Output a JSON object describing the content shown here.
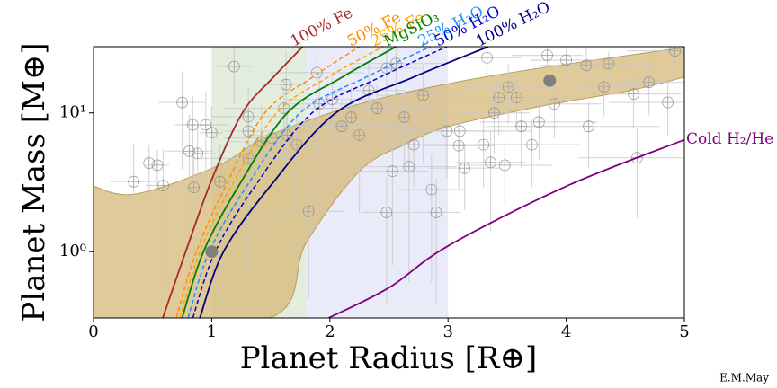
{
  "chart_data": {
    "type": "scatter",
    "x_label": "Planet Radius [R⊕]",
    "y_label": "Planet Mass [M⊕]",
    "xlim": [
      0,
      5
    ],
    "ylim": [
      0.333,
      30
    ],
    "xticks": [
      0,
      1,
      2,
      3,
      4,
      5
    ],
    "yticks": [
      {
        "value": 1,
        "label": "10⁰"
      },
      {
        "value": 10,
        "label": "10¹"
      }
    ],
    "log_y": true,
    "regions": [
      {
        "xlim": [
          1,
          1.8
        ],
        "color": "#dbe9d6"
      },
      {
        "xlim": [
          1.8,
          3
        ],
        "color": "#e4e7f6"
      }
    ],
    "band": {
      "color": "#d6b878",
      "upper": {
        "x": [
          0,
          0.35,
          1.035,
          1.49,
          2.25,
          3.01,
          3.77,
          5
        ],
        "y": [
          2.96,
          2.6,
          4.1,
          6.9,
          11.6,
          16.3,
          21,
          29.6
        ]
      },
      "lower": {
        "x": [
          0,
          1.49,
          1.8,
          2.25,
          2.63,
          3.01,
          3.77,
          4.54,
          5
        ],
        "y": [
          0.333,
          0.333,
          1.16,
          3.8,
          5.9,
          8,
          11.1,
          14.5,
          18.1
        ]
      }
    },
    "curves": [
      {
        "name": "100% Fe",
        "color": "#a52a2a",
        "dashed": false,
        "x": [
          0.586,
          0.78,
          1.0,
          1.26,
          1.52,
          1.77
        ],
        "y": [
          0.333,
          1,
          3.3,
          10,
          18,
          30
        ]
      },
      {
        "name": "50% Fe",
        "color": "#ff8c00",
        "dashed": true,
        "x": [
          0.7,
          0.87,
          1.12,
          1.45,
          1.85,
          2.25
        ],
        "y": [
          0.333,
          1,
          3,
          10,
          18,
          30
        ]
      },
      {
        "name": "25% Fe",
        "color": "#ffa500",
        "dashed": true,
        "x": [
          0.73,
          0.9,
          1.17,
          1.55,
          1.98,
          2.45
        ],
        "y": [
          0.333,
          1,
          3,
          10,
          18,
          30
        ]
      },
      {
        "name": "MgSiO₃",
        "color": "#008000",
        "dashed": false,
        "x": [
          0.75,
          0.93,
          1.23,
          1.64,
          2.1,
          2.56
        ],
        "y": [
          0.333,
          1,
          3,
          10,
          18,
          30
        ]
      },
      {
        "name": "25% H₂O",
        "color": "#1e90ff",
        "dashed": true,
        "x": [
          0.8,
          0.98,
          1.3,
          1.75,
          2.3,
          2.85
        ],
        "y": [
          0.333,
          1,
          3,
          10,
          18,
          30
        ]
      },
      {
        "name": "50% H₂O",
        "color": "#0000cd",
        "dashed": true,
        "x": [
          0.84,
          1.03,
          1.37,
          1.85,
          2.42,
          2.99
        ],
        "y": [
          0.333,
          1,
          3,
          10,
          18,
          30
        ]
      },
      {
        "name": "100% H₂O",
        "color": "#000080",
        "dashed": false,
        "x": [
          0.9,
          1.1,
          1.5,
          2.05,
          2.7,
          3.34
        ],
        "y": [
          0.333,
          1,
          3,
          10,
          18,
          30
        ]
      },
      {
        "name": "Cold H₂/He",
        "color": "#800080",
        "dashed": false,
        "x": [
          1.99,
          2.5,
          3,
          4,
          5
        ],
        "y": [
          0.333,
          0.55,
          1.1,
          2.96,
          6.4
        ]
      }
    ],
    "planets": {
      "x": [
        0.47,
        0.54,
        0.34,
        0.59,
        0.75,
        0.84,
        0.95,
        1.0,
        0.81,
        0.88,
        0.85,
        1.19,
        1.31,
        1.31,
        1.31,
        1.07,
        1.42,
        1.51,
        1.63,
        1.61,
        1.64,
        1.72,
        1.82,
        1.89,
        1.91,
        2.02,
        2.1,
        2.18,
        2.25,
        2.33,
        2.4,
        2.48,
        2.56,
        2.53,
        2.67,
        2.48,
        2.63,
        2.71,
        2.79,
        2.86,
        2.9,
        2.99,
        3.09,
        3.1,
        3.14,
        3.33,
        3.3,
        3.36,
        3.43,
        3.39,
        3.48,
        3.51,
        3.58,
        3.62,
        3.71,
        3.77,
        3.84,
        3.9,
        4.0,
        4.17,
        4.19,
        4.32,
        4.36,
        4.57,
        4.6,
        4.7,
        4.86,
        4.92
      ],
      "y": [
        4.35,
        4.2,
        3.2,
        3.0,
        11.9,
        8.2,
        8.2,
        7.2,
        5.3,
        5.1,
        2.9,
        21.6,
        9.4,
        7.4,
        4.7,
        3.2,
        6.2,
        6.6,
        16,
        10.8,
        6.9,
        5.9,
        1.95,
        19.5,
        11.6,
        12.5,
        8,
        9.3,
        6.9,
        14.5,
        10.8,
        21,
        22.7,
        3.8,
        4.1,
        1.92,
        9.3,
        5.9,
        13.4,
        2.8,
        1.92,
        7.4,
        5.8,
        7.4,
        4,
        25,
        5.9,
        4.4,
        12.9,
        10,
        4.2,
        15.4,
        12.9,
        8,
        5.9,
        8.6,
        26,
        11.6,
        24,
        22,
        8,
        15.4,
        22.6,
        13.7,
        4.75,
        16.6,
        11.9,
        28
      ],
      "xerr": [
        0.1,
        0.1,
        0.2,
        0.15,
        0.2,
        0.15,
        0.2,
        0.1,
        0.2,
        0.15,
        0.1,
        0.15,
        0.3,
        0.2,
        0.4,
        0.2,
        0.3,
        0.4,
        0.2,
        0.5,
        0.3,
        0.2,
        0.3,
        0.4,
        0.3,
        0.4,
        0.5,
        0.3,
        0.4,
        0.3,
        0.5,
        0.3,
        0.4,
        0.3,
        0.4,
        0.2,
        0.6,
        0.3,
        0.4,
        0.3,
        0.2,
        0.5,
        0.3,
        0.6,
        0.3,
        0.3,
        0.4,
        0.3,
        0.5,
        0.3,
        0.4,
        0.4,
        0.5,
        0.3,
        0.4,
        0.5,
        0.3,
        0.4,
        0.3,
        0.4,
        0.6,
        0.3,
        0.4,
        0.4,
        0.5,
        0.3,
        0.5,
        0.4
      ],
      "yerr": [
        1.5,
        1.2,
        2.8,
        2.5,
        8,
        5,
        6,
        4,
        4.5,
        3,
        2.5,
        10,
        6,
        3,
        4,
        2.8,
        5,
        3,
        12,
        7,
        3,
        4,
        1.5,
        8,
        7,
        6,
        4,
        6,
        5,
        8,
        5,
        10,
        9,
        3,
        3.5,
        1.5,
        5,
        3,
        9,
        2.2,
        1.5,
        4,
        3,
        4,
        2,
        8,
        3,
        3,
        6,
        5,
        2,
        7,
        5,
        4,
        3,
        4,
        6,
        5,
        6,
        7,
        4,
        6,
        5,
        6,
        3,
        7,
        5,
        6
      ]
    },
    "highlighted": {
      "x": [
        1,
        3.86
      ],
      "y": [
        1,
        17.1
      ],
      "color": "#7f7f7f"
    },
    "credit": "E.M.May"
  }
}
